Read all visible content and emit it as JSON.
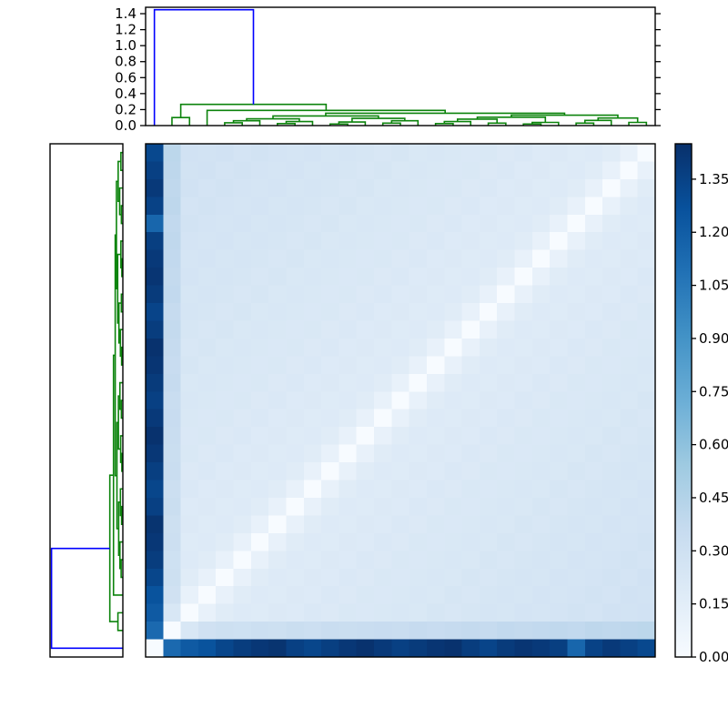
{
  "figure": {
    "title": "",
    "background": "#ffffff",
    "axes_border_color": "#000000",
    "link_color_green": "#0c830c",
    "link_color_blue": "#0000ff",
    "tick_label_color": "#000000"
  },
  "chart_data": {
    "type": "heatmap",
    "subtype": "clustermap-with-dendrograms",
    "n_leaves": 29,
    "column_leaf_order_note": "columns left-to-right are leaves 0..28; rows are the same leaves in reversed order (anti-diagonal of zeros)",
    "rows_reversed": true,
    "heatmap": {
      "vmin": 0.0,
      "vmax": 1.45,
      "colormap_name": "Blues",
      "colormap_stops": [
        "#f7fbff",
        "#deebf7",
        "#c6dbef",
        "#9ecae1",
        "#6baed6",
        "#4292c6",
        "#2171b5",
        "#08519c",
        "#08306b"
      ],
      "matrix": [
        [
          0,
          1.13,
          1.22,
          1.26,
          1.33,
          1.38,
          1.41,
          1.43,
          1.36,
          1.33,
          1.37,
          1.41,
          1.44,
          1.4,
          1.36,
          1.39,
          1.42,
          1.44,
          1.38,
          1.34,
          1.39,
          1.42,
          1.4,
          1.37,
          1.15,
          1.35,
          1.4,
          1.36,
          1.32
        ],
        [
          1.13,
          0,
          0.23,
          0.29,
          0.31,
          0.3,
          0.32,
          0.31,
          0.33,
          0.32,
          0.34,
          0.33,
          0.34,
          0.35,
          0.34,
          0.36,
          0.35,
          0.36,
          0.37,
          0.36,
          0.38,
          0.37,
          0.38,
          0.39,
          0.38,
          0.4,
          0.39,
          0.4,
          0.41
        ],
        [
          1.22,
          0.23,
          0,
          0.11,
          0.17,
          0.19,
          0.18,
          0.2,
          0.19,
          0.21,
          0.2,
          0.22,
          0.21,
          0.22,
          0.23,
          0.22,
          0.24,
          0.23,
          0.24,
          0.25,
          0.24,
          0.26,
          0.25,
          0.26,
          0.27,
          0.26,
          0.28,
          0.27,
          0.28
        ],
        [
          1.26,
          0.29,
          0.11,
          0,
          0.11,
          0.17,
          0.19,
          0.18,
          0.2,
          0.19,
          0.21,
          0.2,
          0.22,
          0.21,
          0.22,
          0.23,
          0.22,
          0.24,
          0.23,
          0.24,
          0.25,
          0.24,
          0.26,
          0.25,
          0.26,
          0.27,
          0.26,
          0.28,
          0.27
        ],
        [
          1.33,
          0.31,
          0.17,
          0.11,
          0,
          0.11,
          0.17,
          0.19,
          0.18,
          0.2,
          0.19,
          0.21,
          0.2,
          0.22,
          0.21,
          0.22,
          0.23,
          0.22,
          0.24,
          0.23,
          0.24,
          0.25,
          0.24,
          0.26,
          0.25,
          0.26,
          0.27,
          0.26,
          0.28
        ],
        [
          1.38,
          0.3,
          0.19,
          0.17,
          0.11,
          0,
          0.11,
          0.17,
          0.19,
          0.18,
          0.2,
          0.19,
          0.21,
          0.2,
          0.22,
          0.21,
          0.22,
          0.23,
          0.22,
          0.24,
          0.23,
          0.24,
          0.25,
          0.24,
          0.26,
          0.25,
          0.26,
          0.27,
          0.26
        ],
        [
          1.41,
          0.32,
          0.18,
          0.19,
          0.17,
          0.11,
          0,
          0.11,
          0.17,
          0.19,
          0.18,
          0.2,
          0.19,
          0.21,
          0.2,
          0.22,
          0.21,
          0.22,
          0.23,
          0.22,
          0.24,
          0.23,
          0.24,
          0.25,
          0.24,
          0.26,
          0.25,
          0.26,
          0.27
        ],
        [
          1.43,
          0.31,
          0.2,
          0.18,
          0.19,
          0.17,
          0.11,
          0,
          0.11,
          0.17,
          0.19,
          0.18,
          0.2,
          0.19,
          0.21,
          0.2,
          0.22,
          0.21,
          0.22,
          0.23,
          0.22,
          0.24,
          0.23,
          0.24,
          0.25,
          0.24,
          0.26,
          0.25,
          0.26
        ],
        [
          1.36,
          0.33,
          0.19,
          0.2,
          0.18,
          0.19,
          0.17,
          0.11,
          0,
          0.11,
          0.17,
          0.19,
          0.18,
          0.2,
          0.19,
          0.21,
          0.2,
          0.22,
          0.21,
          0.22,
          0.23,
          0.22,
          0.24,
          0.23,
          0.24,
          0.25,
          0.24,
          0.26,
          0.25
        ],
        [
          1.33,
          0.32,
          0.21,
          0.19,
          0.2,
          0.18,
          0.19,
          0.17,
          0.11,
          0,
          0.11,
          0.17,
          0.19,
          0.18,
          0.2,
          0.19,
          0.21,
          0.2,
          0.22,
          0.21,
          0.22,
          0.23,
          0.22,
          0.24,
          0.23,
          0.24,
          0.25,
          0.24,
          0.26
        ],
        [
          1.37,
          0.34,
          0.2,
          0.21,
          0.19,
          0.2,
          0.18,
          0.19,
          0.17,
          0.11,
          0,
          0.11,
          0.17,
          0.19,
          0.18,
          0.2,
          0.19,
          0.21,
          0.2,
          0.22,
          0.21,
          0.22,
          0.23,
          0.22,
          0.24,
          0.23,
          0.24,
          0.25,
          0.24
        ],
        [
          1.41,
          0.33,
          0.22,
          0.2,
          0.21,
          0.19,
          0.2,
          0.18,
          0.19,
          0.17,
          0.11,
          0,
          0.11,
          0.17,
          0.19,
          0.18,
          0.2,
          0.19,
          0.21,
          0.2,
          0.22,
          0.21,
          0.22,
          0.23,
          0.22,
          0.24,
          0.23,
          0.24,
          0.25
        ],
        [
          1.44,
          0.34,
          0.21,
          0.22,
          0.2,
          0.21,
          0.19,
          0.2,
          0.18,
          0.19,
          0.17,
          0.11,
          0,
          0.11,
          0.17,
          0.19,
          0.18,
          0.2,
          0.19,
          0.21,
          0.2,
          0.22,
          0.21,
          0.22,
          0.23,
          0.22,
          0.24,
          0.23,
          0.24
        ],
        [
          1.4,
          0.35,
          0.22,
          0.21,
          0.22,
          0.2,
          0.21,
          0.19,
          0.2,
          0.18,
          0.19,
          0.17,
          0.11,
          0,
          0.11,
          0.17,
          0.19,
          0.18,
          0.2,
          0.19,
          0.21,
          0.2,
          0.22,
          0.21,
          0.22,
          0.23,
          0.22,
          0.24,
          0.23
        ],
        [
          1.36,
          0.34,
          0.23,
          0.22,
          0.21,
          0.22,
          0.2,
          0.21,
          0.19,
          0.2,
          0.18,
          0.19,
          0.17,
          0.11,
          0,
          0.11,
          0.17,
          0.19,
          0.18,
          0.2,
          0.19,
          0.21,
          0.2,
          0.22,
          0.21,
          0.22,
          0.23,
          0.22,
          0.24
        ],
        [
          1.39,
          0.36,
          0.22,
          0.23,
          0.22,
          0.21,
          0.22,
          0.2,
          0.21,
          0.19,
          0.2,
          0.18,
          0.19,
          0.17,
          0.11,
          0,
          0.11,
          0.17,
          0.19,
          0.18,
          0.2,
          0.19,
          0.21,
          0.2,
          0.22,
          0.21,
          0.22,
          0.23,
          0.22
        ],
        [
          1.42,
          0.35,
          0.24,
          0.22,
          0.23,
          0.22,
          0.21,
          0.22,
          0.2,
          0.21,
          0.19,
          0.2,
          0.18,
          0.19,
          0.17,
          0.11,
          0,
          0.11,
          0.17,
          0.19,
          0.18,
          0.2,
          0.19,
          0.21,
          0.2,
          0.22,
          0.21,
          0.22,
          0.23
        ],
        [
          1.44,
          0.36,
          0.23,
          0.24,
          0.22,
          0.23,
          0.22,
          0.21,
          0.22,
          0.2,
          0.21,
          0.19,
          0.2,
          0.18,
          0.19,
          0.17,
          0.11,
          0,
          0.11,
          0.17,
          0.19,
          0.18,
          0.2,
          0.19,
          0.21,
          0.2,
          0.22,
          0.21,
          0.22
        ],
        [
          1.38,
          0.37,
          0.24,
          0.23,
          0.24,
          0.22,
          0.23,
          0.22,
          0.21,
          0.22,
          0.2,
          0.21,
          0.19,
          0.2,
          0.18,
          0.19,
          0.17,
          0.11,
          0,
          0.11,
          0.17,
          0.19,
          0.18,
          0.2,
          0.19,
          0.21,
          0.2,
          0.22,
          0.21
        ],
        [
          1.34,
          0.36,
          0.25,
          0.24,
          0.23,
          0.24,
          0.22,
          0.23,
          0.22,
          0.21,
          0.22,
          0.2,
          0.21,
          0.19,
          0.2,
          0.18,
          0.19,
          0.17,
          0.11,
          0,
          0.11,
          0.17,
          0.19,
          0.18,
          0.2,
          0.19,
          0.21,
          0.2,
          0.22
        ],
        [
          1.39,
          0.38,
          0.24,
          0.25,
          0.24,
          0.23,
          0.24,
          0.22,
          0.23,
          0.22,
          0.21,
          0.22,
          0.2,
          0.21,
          0.19,
          0.2,
          0.18,
          0.19,
          0.17,
          0.11,
          0,
          0.11,
          0.17,
          0.19,
          0.18,
          0.2,
          0.19,
          0.21,
          0.2
        ],
        [
          1.42,
          0.37,
          0.26,
          0.24,
          0.25,
          0.24,
          0.23,
          0.24,
          0.22,
          0.23,
          0.22,
          0.21,
          0.22,
          0.2,
          0.21,
          0.19,
          0.2,
          0.18,
          0.19,
          0.17,
          0.11,
          0,
          0.11,
          0.17,
          0.19,
          0.18,
          0.2,
          0.19,
          0.21
        ],
        [
          1.4,
          0.38,
          0.25,
          0.26,
          0.24,
          0.25,
          0.24,
          0.23,
          0.24,
          0.22,
          0.23,
          0.22,
          0.21,
          0.22,
          0.2,
          0.21,
          0.19,
          0.2,
          0.18,
          0.19,
          0.17,
          0.11,
          0,
          0.11,
          0.17,
          0.19,
          0.18,
          0.2,
          0.19
        ],
        [
          1.37,
          0.39,
          0.26,
          0.25,
          0.26,
          0.24,
          0.25,
          0.24,
          0.23,
          0.24,
          0.22,
          0.23,
          0.22,
          0.21,
          0.22,
          0.2,
          0.21,
          0.19,
          0.2,
          0.18,
          0.19,
          0.17,
          0.11,
          0,
          0.11,
          0.17,
          0.19,
          0.18,
          0.2
        ],
        [
          1.15,
          0.38,
          0.27,
          0.26,
          0.25,
          0.26,
          0.24,
          0.25,
          0.24,
          0.23,
          0.24,
          0.22,
          0.23,
          0.22,
          0.21,
          0.22,
          0.2,
          0.21,
          0.19,
          0.2,
          0.18,
          0.19,
          0.17,
          0.11,
          0,
          0.11,
          0.17,
          0.19,
          0.18
        ],
        [
          1.35,
          0.4,
          0.26,
          0.27,
          0.26,
          0.25,
          0.26,
          0.24,
          0.25,
          0.24,
          0.23,
          0.24,
          0.22,
          0.23,
          0.22,
          0.21,
          0.22,
          0.2,
          0.21,
          0.19,
          0.2,
          0.18,
          0.19,
          0.17,
          0.11,
          0,
          0.11,
          0.17,
          0.19
        ],
        [
          1.4,
          0.39,
          0.28,
          0.26,
          0.27,
          0.26,
          0.25,
          0.26,
          0.24,
          0.25,
          0.24,
          0.23,
          0.24,
          0.22,
          0.23,
          0.22,
          0.21,
          0.22,
          0.2,
          0.21,
          0.19,
          0.2,
          0.18,
          0.19,
          0.17,
          0.11,
          0,
          0.11,
          0.17
        ],
        [
          1.36,
          0.4,
          0.27,
          0.28,
          0.26,
          0.27,
          0.26,
          0.25,
          0.26,
          0.24,
          0.25,
          0.24,
          0.23,
          0.24,
          0.22,
          0.23,
          0.22,
          0.21,
          0.22,
          0.2,
          0.21,
          0.19,
          0.2,
          0.18,
          0.19,
          0.17,
          0.11,
          0,
          0.11
        ],
        [
          1.32,
          0.41,
          0.28,
          0.27,
          0.28,
          0.26,
          0.27,
          0.26,
          0.25,
          0.26,
          0.24,
          0.25,
          0.24,
          0.23,
          0.24,
          0.22,
          0.23,
          0.22,
          0.21,
          0.22,
          0.2,
          0.21,
          0.19,
          0.2,
          0.18,
          0.19,
          0.17,
          0.11,
          0
        ]
      ]
    },
    "dendrogram": {
      "max_height": 1.45,
      "axis_max": 1.48,
      "color_threshold": 1.015,
      "merges": [
        [
          "L1",
          "L2",
          0.1
        ],
        [
          "L4",
          "L5",
          0.035
        ],
        [
          "M1",
          "L6",
          0.06
        ],
        [
          "L7",
          "L8",
          0.025
        ],
        [
          "M3",
          "L9",
          0.05
        ],
        [
          "M2",
          "M4",
          0.085
        ],
        [
          "L10",
          "L11",
          0.02
        ],
        [
          "M6",
          "L12",
          0.045
        ],
        [
          "L13",
          "L14",
          0.03
        ],
        [
          "M8",
          "L15",
          0.06
        ],
        [
          "M7",
          "M9",
          0.09
        ],
        [
          "M5",
          "M10",
          0.12
        ],
        [
          "L16",
          "L17",
          0.025
        ],
        [
          "M12",
          "L18",
          0.05
        ],
        [
          "L19",
          "L20",
          0.03
        ],
        [
          "M13",
          "M14",
          0.08
        ],
        [
          "L21",
          "L22",
          0.02
        ],
        [
          "M16",
          "L23",
          0.04
        ],
        [
          "M15",
          "M17",
          0.105
        ],
        [
          "L24",
          "L25",
          0.03
        ],
        [
          "M19",
          "L26",
          0.065
        ],
        [
          "L27",
          "L28",
          0.04
        ],
        [
          "M20",
          "M21",
          0.095
        ],
        [
          "M18",
          "M22",
          0.13
        ],
        [
          "M11",
          "M23",
          0.155
        ],
        [
          "L3",
          "M24",
          0.19
        ],
        [
          "M0",
          "M25",
          0.265
        ],
        [
          "L0",
          "M26",
          1.45
        ]
      ]
    },
    "top_axis": {
      "tick_values": [
        0.0,
        0.2,
        0.4,
        0.6,
        0.8,
        1.0,
        1.2,
        1.4
      ],
      "tick_labels": [
        "0.0",
        "0.2",
        "0.4",
        "0.6",
        "0.8",
        "1.0",
        "1.2",
        "1.4"
      ]
    },
    "colorbar": {
      "tick_values": [
        0.0,
        0.15,
        0.3,
        0.45,
        0.6,
        0.75,
        0.9,
        1.05,
        1.2,
        1.35
      ],
      "tick_labels": [
        "0.00",
        "0.15",
        "0.30",
        "0.45",
        "0.60",
        "0.75",
        "0.90",
        "1.05",
        "1.20",
        "1.35"
      ]
    }
  }
}
